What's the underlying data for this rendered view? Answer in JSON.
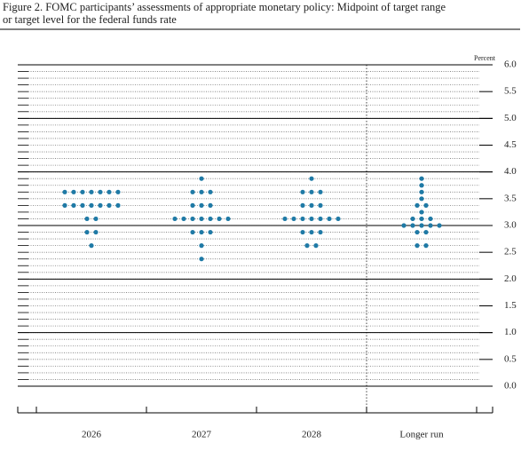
{
  "chart_data": {
    "type": "dotplot",
    "title": "Figure 2. FOMC participants’ assessments of appropriate monetary policy: Midpoint of target range",
    "title_line2": "or target level for the federal funds rate",
    "y_unit_label": "Percent",
    "categories": [
      "2026",
      "2027",
      "2028",
      "Longer run"
    ],
    "color": "#1f7aa6",
    "ylim": [
      0,
      6
    ],
    "yticks": [
      {
        "value": 0,
        "label": "0.0"
      },
      {
        "value": 0.5,
        "label": "0.5"
      },
      {
        "value": 1,
        "label": "1.0"
      },
      {
        "value": 1.5,
        "label": "1.5"
      },
      {
        "value": 2,
        "label": "2.0"
      },
      {
        "value": 2.5,
        "label": "2.5"
      },
      {
        "value": 3,
        "label": "3.0"
      },
      {
        "value": 3.5,
        "label": "3.5"
      },
      {
        "value": 4,
        "label": "4.0"
      },
      {
        "value": 4.5,
        "label": "4.5"
      },
      {
        "value": 5,
        "label": "5.0"
      },
      {
        "value": 5.5,
        "label": "5.5"
      },
      {
        "value": 6,
        "label": "6.0"
      }
    ],
    "minor_grid_step": 0.125,
    "dots": [
      [
        {
          "rate": 3.625,
          "count": 7
        },
        {
          "rate": 3.375,
          "count": 7
        },
        {
          "rate": 3.125,
          "count": 2
        },
        {
          "rate": 2.875,
          "count": 2
        },
        {
          "rate": 2.625,
          "count": 1
        }
      ],
      [
        {
          "rate": 3.875,
          "count": 1
        },
        {
          "rate": 3.625,
          "count": 3
        },
        {
          "rate": 3.375,
          "count": 3
        },
        {
          "rate": 3.125,
          "count": 7
        },
        {
          "rate": 2.875,
          "count": 3
        },
        {
          "rate": 2.625,
          "count": 1
        },
        {
          "rate": 2.375,
          "count": 1
        }
      ],
      [
        {
          "rate": 3.875,
          "count": 1
        },
        {
          "rate": 3.625,
          "count": 3
        },
        {
          "rate": 3.375,
          "count": 3
        },
        {
          "rate": 3.125,
          "count": 7
        },
        {
          "rate": 2.875,
          "count": 3
        },
        {
          "rate": 2.625,
          "count": 2
        }
      ],
      [
        {
          "rate": 3.875,
          "count": 1
        },
        {
          "rate": 3.75,
          "count": 1
        },
        {
          "rate": 3.625,
          "count": 1
        },
        {
          "rate": 3.5,
          "count": 1
        },
        {
          "rate": 3.375,
          "count": 2
        },
        {
          "rate": 3.25,
          "count": 1
        },
        {
          "rate": 3.125,
          "count": 3
        },
        {
          "rate": 3.0,
          "count": 5
        },
        {
          "rate": 2.875,
          "count": 2
        },
        {
          "rate": 2.625,
          "count": 2
        }
      ]
    ]
  }
}
